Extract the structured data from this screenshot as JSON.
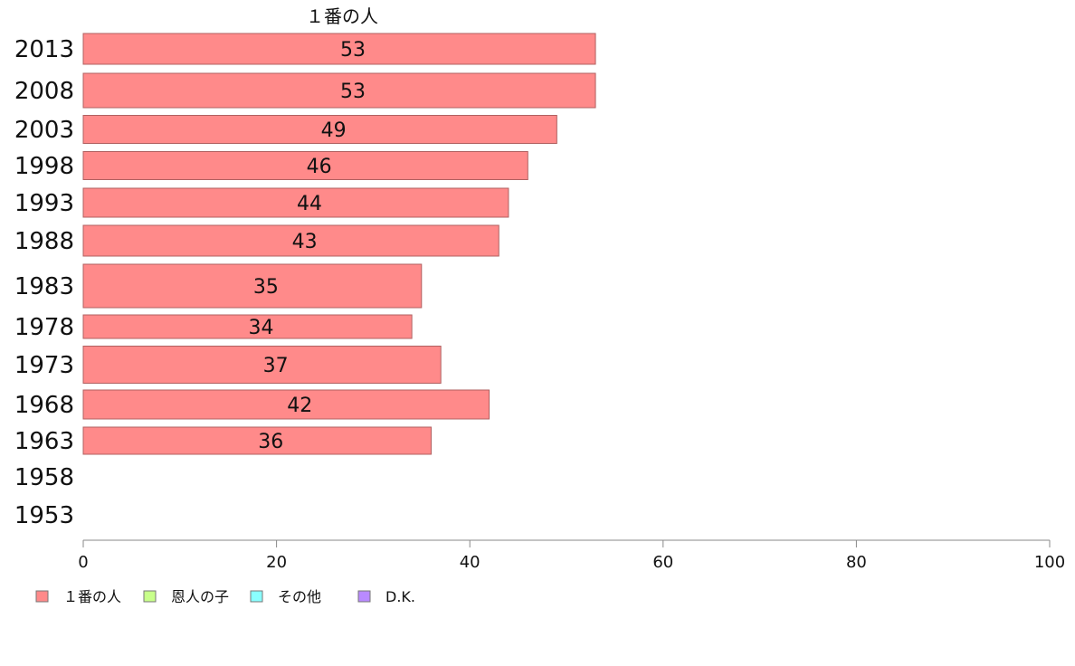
{
  "chart_data": {
    "type": "bar",
    "orientation": "horizontal",
    "title": "１番の人",
    "categories": [
      "2013",
      "2008",
      "2003",
      "1998",
      "1993",
      "1988",
      "1983",
      "1978",
      "1973",
      "1968",
      "1963",
      "1958",
      "1953"
    ],
    "series": [
      {
        "name": "１番の人",
        "color": "#ff8a8a",
        "values": [
          53,
          53,
          49,
          46,
          44,
          43,
          35,
          34,
          37,
          42,
          36,
          null,
          null
        ]
      }
    ],
    "xlim": [
      0,
      100
    ],
    "xticks": [
      "0",
      "20",
      "40",
      "60",
      "80",
      "100"
    ],
    "grid": false,
    "legend": {
      "position": "bottom-left",
      "entries": [
        {
          "label": "１番の人",
          "color": "#ff8a8a"
        },
        {
          "label": "恩人の子",
          "color": "#c8ff8a"
        },
        {
          "label": "その他",
          "color": "#8affff"
        },
        {
          "label": "D.K.",
          "color": "#b98aff"
        }
      ]
    }
  }
}
